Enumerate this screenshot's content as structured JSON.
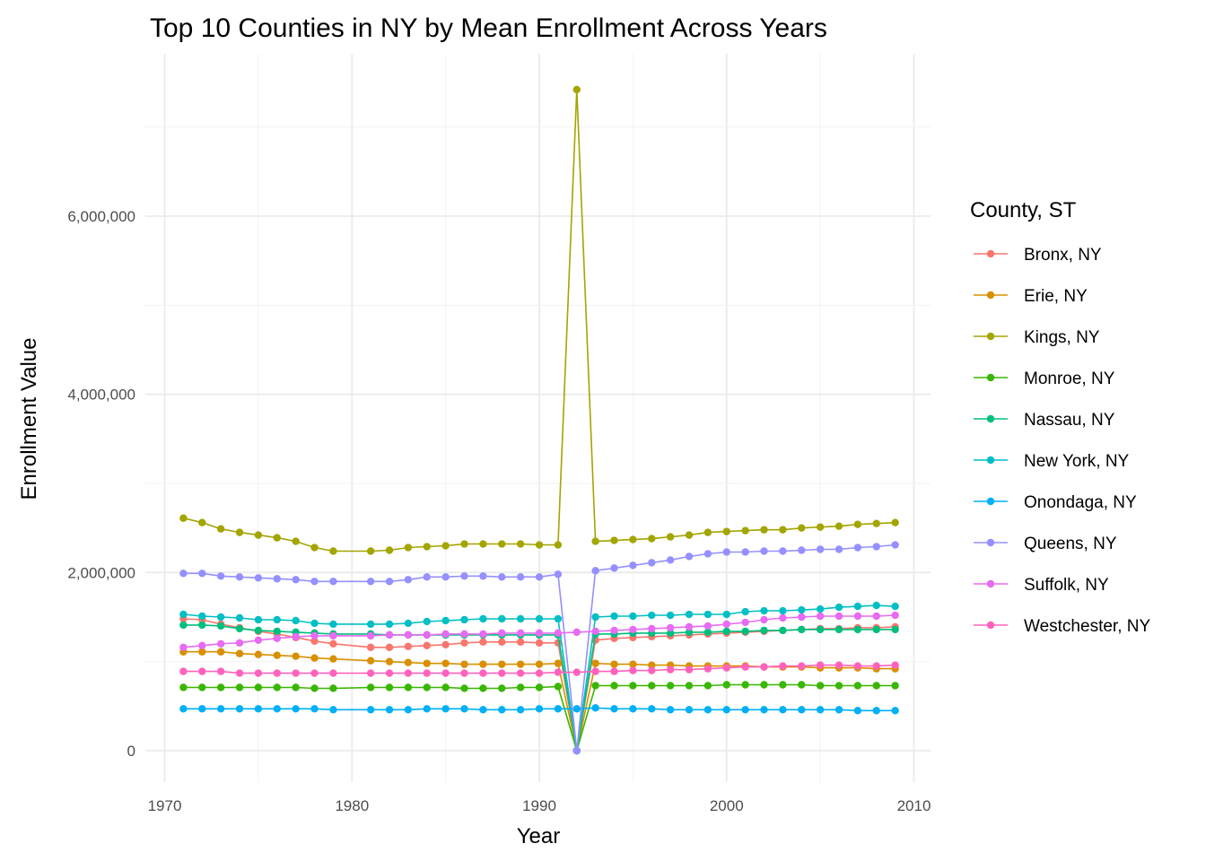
{
  "chart_data": {
    "type": "line",
    "title": "Top 10 Counties in NY by Mean Enrollment Across Years",
    "xlabel": "Year",
    "ylabel": "Enrollment Value",
    "xlim": [
      1970,
      2010
    ],
    "ylim": [
      0,
      7400000
    ],
    "x_ticks": [
      1970,
      1980,
      1990,
      2000,
      2010
    ],
    "y_ticks": [
      0,
      2000000,
      4000000,
      6000000
    ],
    "y_tick_labels": [
      "0",
      "2,000,000",
      "4,000,000",
      "6,000,000"
    ],
    "grid": true,
    "legend": {
      "title": "County, ST",
      "position": "right"
    },
    "x": [
      1971,
      1972,
      1973,
      1974,
      1975,
      1976,
      1977,
      1978,
      1979,
      1981,
      1982,
      1983,
      1984,
      1985,
      1986,
      1987,
      1988,
      1989,
      1990,
      1991,
      1992,
      1993,
      1994,
      1995,
      1996,
      1997,
      1998,
      1999,
      2000,
      2001,
      2002,
      2003,
      2004,
      2005,
      2006,
      2007,
      2008,
      2009
    ],
    "series": [
      {
        "name": "Bronx, NY",
        "color": "#F8766D",
        "values": [
          1480000,
          1470000,
          1420000,
          1380000,
          1340000,
          1310000,
          1270000,
          1230000,
          1200000,
          1160000,
          1160000,
          1170000,
          1180000,
          1190000,
          1210000,
          1220000,
          1220000,
          1220000,
          1210000,
          1210000,
          0,
          1240000,
          1260000,
          1270000,
          1280000,
          1290000,
          1300000,
          1310000,
          1320000,
          1330000,
          1340000,
          1350000,
          1360000,
          1370000,
          1370000,
          1380000,
          1380000,
          1390000
        ]
      },
      {
        "name": "Erie, NY",
        "color": "#D89000",
        "values": [
          1110000,
          1110000,
          1110000,
          1090000,
          1080000,
          1070000,
          1060000,
          1040000,
          1030000,
          1010000,
          1000000,
          990000,
          980000,
          980000,
          970000,
          970000,
          970000,
          970000,
          970000,
          980000,
          0,
          980000,
          970000,
          970000,
          960000,
          960000,
          950000,
          950000,
          950000,
          950000,
          940000,
          940000,
          940000,
          930000,
          930000,
          930000,
          920000,
          920000
        ]
      },
      {
        "name": "Kings, NY",
        "color": "#A3A500",
        "values": [
          2610000,
          2560000,
          2490000,
          2450000,
          2420000,
          2390000,
          2350000,
          2280000,
          2240000,
          2240000,
          2250000,
          2280000,
          2290000,
          2300000,
          2320000,
          2320000,
          2320000,
          2320000,
          2310000,
          2310000,
          7420000,
          2350000,
          2360000,
          2370000,
          2380000,
          2400000,
          2420000,
          2450000,
          2460000,
          2470000,
          2480000,
          2480000,
          2500000,
          2510000,
          2520000,
          2540000,
          2550000,
          2560000
        ]
      },
      {
        "name": "Monroe, NY",
        "color": "#39B600",
        "values": [
          710000,
          710000,
          710000,
          710000,
          710000,
          710000,
          710000,
          700000,
          700000,
          710000,
          710000,
          710000,
          710000,
          710000,
          700000,
          700000,
          700000,
          710000,
          710000,
          720000,
          0,
          730000,
          730000,
          730000,
          730000,
          730000,
          730000,
          730000,
          740000,
          740000,
          740000,
          740000,
          740000,
          730000,
          730000,
          730000,
          730000,
          730000
        ]
      },
      {
        "name": "Nassau, NY",
        "color": "#00BF7D",
        "values": [
          1410000,
          1410000,
          1400000,
          1370000,
          1350000,
          1340000,
          1330000,
          1320000,
          1310000,
          1310000,
          1300000,
          1300000,
          1300000,
          1300000,
          1300000,
          1300000,
          1300000,
          1300000,
          1300000,
          1300000,
          0,
          1310000,
          1310000,
          1320000,
          1320000,
          1320000,
          1330000,
          1330000,
          1340000,
          1340000,
          1350000,
          1350000,
          1360000,
          1360000,
          1360000,
          1360000,
          1360000,
          1360000
        ]
      },
      {
        "name": "New York, NY",
        "color": "#00BFC4",
        "values": [
          1530000,
          1510000,
          1500000,
          1490000,
          1470000,
          1470000,
          1460000,
          1430000,
          1420000,
          1420000,
          1420000,
          1430000,
          1450000,
          1460000,
          1470000,
          1480000,
          1480000,
          1480000,
          1480000,
          1480000,
          0,
          1500000,
          1510000,
          1510000,
          1520000,
          1520000,
          1530000,
          1530000,
          1530000,
          1560000,
          1570000,
          1570000,
          1580000,
          1590000,
          1610000,
          1620000,
          1630000,
          1620000
        ]
      },
      {
        "name": "Onondaga, NY",
        "color": "#00B0F6",
        "values": [
          470000,
          470000,
          470000,
          470000,
          470000,
          470000,
          470000,
          470000,
          460000,
          460000,
          460000,
          460000,
          470000,
          470000,
          470000,
          460000,
          460000,
          460000,
          470000,
          470000,
          470000,
          480000,
          470000,
          470000,
          470000,
          460000,
          460000,
          460000,
          460000,
          460000,
          460000,
          460000,
          460000,
          460000,
          460000,
          450000,
          450000,
          450000
        ]
      },
      {
        "name": "Queens, NY",
        "color": "#9590FF",
        "values": [
          1990000,
          1990000,
          1960000,
          1950000,
          1940000,
          1930000,
          1920000,
          1900000,
          1900000,
          1900000,
          1900000,
          1920000,
          1950000,
          1950000,
          1960000,
          1960000,
          1950000,
          1950000,
          1950000,
          1980000,
          0,
          2020000,
          2050000,
          2080000,
          2110000,
          2140000,
          2180000,
          2210000,
          2230000,
          2230000,
          2240000,
          2240000,
          2250000,
          2260000,
          2260000,
          2280000,
          2290000,
          2310000
        ]
      },
      {
        "name": "Suffolk, NY",
        "color": "#E76BF3",
        "values": [
          1160000,
          1180000,
          1200000,
          1210000,
          1240000,
          1260000,
          1280000,
          1290000,
          1290000,
          1290000,
          1300000,
          1300000,
          1300000,
          1310000,
          1310000,
          1310000,
          1320000,
          1320000,
          1320000,
          1320000,
          1330000,
          1340000,
          1350000,
          1360000,
          1370000,
          1380000,
          1390000,
          1400000,
          1420000,
          1440000,
          1470000,
          1490000,
          1500000,
          1510000,
          1510000,
          1510000,
          1510000,
          1520000
        ]
      },
      {
        "name": "Westchester, NY",
        "color": "#FF62BC",
        "values": [
          890000,
          890000,
          890000,
          870000,
          870000,
          870000,
          870000,
          870000,
          870000,
          870000,
          870000,
          870000,
          870000,
          870000,
          870000,
          870000,
          870000,
          870000,
          870000,
          880000,
          880000,
          890000,
          890000,
          900000,
          900000,
          910000,
          910000,
          920000,
          930000,
          940000,
          940000,
          950000,
          950000,
          960000,
          960000,
          950000,
          950000,
          960000
        ]
      }
    ]
  }
}
